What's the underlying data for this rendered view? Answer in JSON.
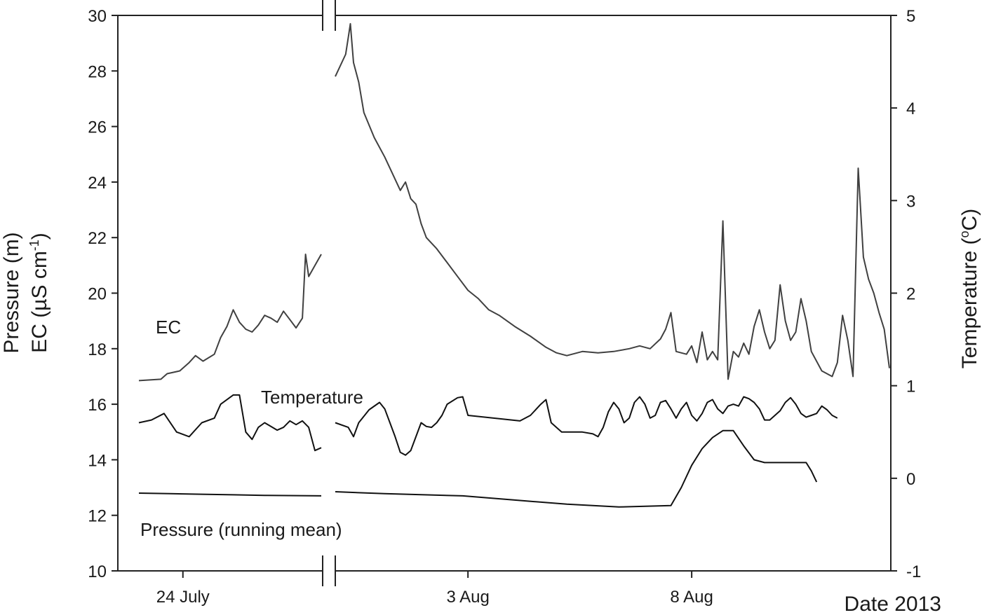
{
  "chart_data": {
    "type": "line",
    "xlabel": "Date 2013",
    "x_ticks": [
      "24 July",
      "3 Aug",
      "8 Aug"
    ],
    "left_axis": {
      "label_line1": "Pressure (m)",
      "label_line2_prefix": "EC (µS cm",
      "label_line2_sup": "-1",
      "label_line2_suffix": ")",
      "ylim": [
        10,
        30
      ],
      "ticks": [
        "10",
        "12",
        "14",
        "16",
        "18",
        "20",
        "22",
        "24",
        "26",
        "28",
        "30"
      ]
    },
    "right_axis": {
      "label_prefix": "Temperature (",
      "label_sup": "o",
      "label_suffix": "C)",
      "ylim": [
        -1,
        5
      ],
      "ticks": [
        "-1",
        "0",
        "1",
        "2",
        "3",
        "4",
        "5"
      ]
    },
    "axis_break": true,
    "series": [
      {
        "name": "EC",
        "axis": "left",
        "color": "#404040",
        "segments": [
          [
            [
              0,
              16.85
            ],
            [
              3.5,
              16.9
            ],
            [
              4.5,
              17.1
            ],
            [
              6.5,
              17.2
            ],
            [
              8,
              17.5
            ],
            [
              9,
              17.75
            ],
            [
              10.2,
              17.55
            ],
            [
              12,
              17.8
            ],
            [
              13,
              18.4
            ],
            [
              14,
              18.8
            ],
            [
              15,
              19.4
            ],
            [
              16,
              18.95
            ],
            [
              17,
              18.7
            ],
            [
              18,
              18.6
            ],
            [
              19,
              18.85
            ],
            [
              20,
              19.2
            ],
            [
              21,
              19.1
            ],
            [
              22,
              18.95
            ],
            [
              23,
              19.35
            ],
            [
              24,
              19.05
            ],
            [
              25,
              18.75
            ],
            [
              26,
              19.1
            ],
            [
              26.5,
              21.4
            ],
            [
              27,
              20.6
            ],
            [
              29,
              21.4
            ]
          ],
          [
            [
              30.5,
              27.8
            ],
            [
              32.5,
              28.6
            ],
            [
              33,
              29.2
            ],
            [
              33.4,
              29.7
            ],
            [
              34,
              28.3
            ],
            [
              35,
              27.6
            ],
            [
              36,
              26.5
            ],
            [
              38,
              25.6
            ],
            [
              40,
              24.9
            ],
            [
              42,
              24.1
            ],
            [
              43,
              23.7
            ],
            [
              44,
              24.0
            ],
            [
              45,
              23.4
            ],
            [
              46,
              23.2
            ],
            [
              47,
              22.5
            ],
            [
              48,
              22.0
            ],
            [
              50,
              21.6
            ],
            [
              52,
              21.1
            ],
            [
              54,
              20.6
            ],
            [
              56,
              20.1
            ],
            [
              58,
              19.8
            ],
            [
              60,
              19.4
            ],
            [
              62,
              19.2
            ],
            [
              65,
              18.8
            ],
            [
              68,
              18.45
            ],
            [
              71,
              18.05
            ],
            [
              73,
              17.85
            ],
            [
              75,
              17.75
            ],
            [
              78,
              17.9
            ],
            [
              81,
              17.85
            ],
            [
              84,
              17.9
            ],
            [
              87,
              18.0
            ],
            [
              89,
              18.1
            ],
            [
              91,
              18.0
            ],
            [
              93,
              18.35
            ],
            [
              94,
              18.7
            ],
            [
              95,
              19.3
            ],
            [
              96,
              17.9
            ],
            [
              98,
              17.8
            ],
            [
              99,
              18.1
            ],
            [
              100,
              17.5
            ],
            [
              101,
              18.6
            ],
            [
              102,
              17.6
            ],
            [
              103,
              17.9
            ],
            [
              104,
              17.6
            ],
            [
              105,
              22.6
            ],
            [
              106,
              16.9
            ],
            [
              107,
              17.9
            ],
            [
              108,
              17.7
            ],
            [
              109,
              18.2
            ],
            [
              110,
              17.8
            ],
            [
              111,
              18.8
            ],
            [
              112,
              19.4
            ],
            [
              113,
              18.6
            ],
            [
              114,
              18.0
            ],
            [
              115,
              18.3
            ],
            [
              116,
              20.3
            ],
            [
              117,
              19.0
            ],
            [
              118,
              18.3
            ],
            [
              119,
              18.6
            ],
            [
              120,
              19.8
            ],
            [
              121,
              19.0
            ],
            [
              122,
              17.9
            ],
            [
              124,
              17.2
            ],
            [
              126,
              17.0
            ],
            [
              127,
              17.5
            ],
            [
              128,
              19.2
            ],
            [
              129,
              18.3
            ],
            [
              130,
              17.0
            ],
            [
              131,
              24.5
            ],
            [
              132,
              21.3
            ],
            [
              133,
              20.5
            ],
            [
              134,
              20.0
            ],
            [
              135,
              19.3
            ],
            [
              136,
              18.7
            ],
            [
              137,
              17.3
            ]
          ]
        ]
      },
      {
        "name": "Temperature",
        "axis": "right",
        "color": "#111111",
        "segments": [
          [
            [
              0,
              0.6
            ],
            [
              2,
              0.63
            ],
            [
              4,
              0.7
            ],
            [
              6,
              0.5
            ],
            [
              8,
              0.45
            ],
            [
              10,
              0.6
            ],
            [
              12,
              0.65
            ],
            [
              13,
              0.8
            ],
            [
              15,
              0.9
            ],
            [
              16,
              0.9
            ],
            [
              17,
              0.5
            ],
            [
              18,
              0.42
            ],
            [
              19,
              0.55
            ],
            [
              20,
              0.6
            ],
            [
              22,
              0.52
            ],
            [
              23,
              0.55
            ],
            [
              24,
              0.62
            ],
            [
              25,
              0.58
            ],
            [
              26,
              0.62
            ],
            [
              27,
              0.55
            ],
            [
              28,
              0.3
            ],
            [
              29,
              0.33
            ]
          ],
          [
            [
              30.5,
              0.6
            ],
            [
              33,
              0.55
            ],
            [
              34,
              0.45
            ],
            [
              35,
              0.6
            ],
            [
              37,
              0.74
            ],
            [
              39,
              0.82
            ],
            [
              40,
              0.75
            ],
            [
              41,
              0.6
            ],
            [
              42,
              0.45
            ],
            [
              43,
              0.28
            ],
            [
              44,
              0.25
            ],
            [
              45,
              0.3
            ],
            [
              46,
              0.45
            ],
            [
              47,
              0.6
            ],
            [
              48,
              0.56
            ],
            [
              49,
              0.55
            ],
            [
              50,
              0.6
            ],
            [
              51,
              0.68
            ],
            [
              52,
              0.8
            ],
            [
              54,
              0.87
            ],
            [
              55,
              0.88
            ],
            [
              56,
              0.68
            ],
            [
              66,
              0.62
            ],
            [
              68,
              0.68
            ],
            [
              70,
              0.8
            ],
            [
              71,
              0.85
            ],
            [
              72,
              0.6
            ],
            [
              74,
              0.5
            ],
            [
              78,
              0.5
            ],
            [
              80,
              0.48
            ],
            [
              81,
              0.45
            ],
            [
              82,
              0.55
            ],
            [
              83,
              0.72
            ],
            [
              84,
              0.82
            ],
            [
              85,
              0.75
            ],
            [
              86,
              0.6
            ],
            [
              87,
              0.65
            ],
            [
              88,
              0.82
            ],
            [
              89,
              0.88
            ],
            [
              90,
              0.8
            ],
            [
              91,
              0.65
            ],
            [
              92,
              0.68
            ],
            [
              93,
              0.82
            ],
            [
              94,
              0.84
            ],
            [
              95,
              0.75
            ],
            [
              96,
              0.65
            ],
            [
              97,
              0.75
            ],
            [
              98,
              0.82
            ],
            [
              99,
              0.68
            ],
            [
              100,
              0.62
            ],
            [
              101,
              0.7
            ],
            [
              102,
              0.82
            ],
            [
              103,
              0.85
            ],
            [
              104,
              0.75
            ],
            [
              105,
              0.7
            ],
            [
              106,
              0.78
            ],
            [
              107,
              0.8
            ],
            [
              108,
              0.78
            ],
            [
              109,
              0.88
            ],
            [
              110,
              0.86
            ],
            [
              111,
              0.82
            ],
            [
              112,
              0.75
            ],
            [
              113,
              0.63
            ],
            [
              114,
              0.63
            ],
            [
              115,
              0.68
            ],
            [
              116,
              0.73
            ],
            [
              117,
              0.82
            ],
            [
              118,
              0.87
            ],
            [
              119,
              0.8
            ],
            [
              120,
              0.7
            ],
            [
              121,
              0.66
            ],
            [
              122,
              0.68
            ],
            [
              123,
              0.7
            ],
            [
              124,
              0.78
            ],
            [
              125,
              0.74
            ],
            [
              126,
              0.68
            ],
            [
              127,
              0.65
            ]
          ]
        ]
      },
      {
        "name": "Pressure (running mean)",
        "axis": "left",
        "color": "#111111",
        "segments": [
          [
            [
              0,
              12.8
            ],
            [
              5,
              12.78
            ],
            [
              10,
              12.76
            ],
            [
              15,
              12.74
            ],
            [
              20,
              12.72
            ],
            [
              29,
              12.7
            ]
          ],
          [
            [
              30.5,
              12.85
            ],
            [
              40,
              12.78
            ],
            [
              55,
              12.7
            ],
            [
              65,
              12.55
            ],
            [
              75,
              12.4
            ],
            [
              85,
              12.3
            ],
            [
              95,
              12.35
            ],
            [
              97,
              13.0
            ],
            [
              99,
              13.8
            ],
            [
              101,
              14.4
            ],
            [
              103,
              14.8
            ],
            [
              105,
              15.05
            ],
            [
              107,
              15.05
            ],
            [
              109,
              14.5
            ],
            [
              111,
              14.0
            ],
            [
              113,
              13.9
            ],
            [
              115,
              13.9
            ],
            [
              121,
              13.9
            ],
            [
              122,
              13.6
            ],
            [
              123,
              13.2
            ]
          ]
        ]
      }
    ]
  }
}
